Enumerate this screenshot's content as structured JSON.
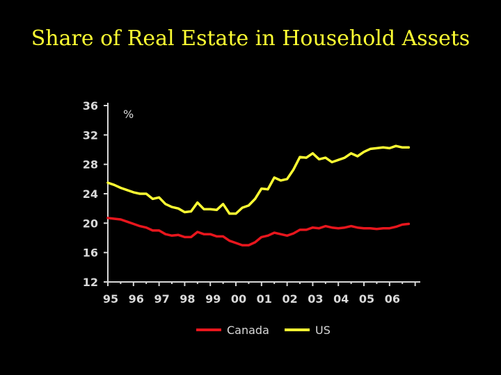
{
  "title": "Share of Real Estate in Household Assets",
  "chart_data": {
    "type": "line",
    "title": "Share of Real Estate in Household Assets",
    "unit_label": "%",
    "xlabel": "",
    "ylabel": "",
    "ylim": [
      12,
      36
    ],
    "yticks": [
      12,
      16,
      20,
      24,
      28,
      32,
      36
    ],
    "xlim": [
      1995,
      2007.2
    ],
    "xticks": [
      {
        "label": "95",
        "x": 1995
      },
      {
        "label": "96",
        "x": 1996
      },
      {
        "label": "97",
        "x": 1997
      },
      {
        "label": "98",
        "x": 1998
      },
      {
        "label": "99",
        "x": 1999
      },
      {
        "label": "00",
        "x": 2000
      },
      {
        "label": "01",
        "x": 2001
      },
      {
        "label": "02",
        "x": 2002
      },
      {
        "label": "03",
        "x": 2003
      },
      {
        "label": "04",
        "x": 2004
      },
      {
        "label": "05",
        "x": 2005
      },
      {
        "label": "06",
        "x": 2006
      }
    ],
    "grid": false,
    "legend_position": "bottom",
    "x": [
      1995.0,
      1995.25,
      1995.5,
      1995.75,
      1996.0,
      1996.25,
      1996.5,
      1996.75,
      1997.0,
      1997.25,
      1997.5,
      1997.75,
      1998.0,
      1998.25,
      1998.5,
      1998.75,
      1999.0,
      1999.25,
      1999.5,
      1999.75,
      2000.0,
      2000.25,
      2000.5,
      2000.75,
      2001.0,
      2001.25,
      2001.5,
      2001.75,
      2002.0,
      2002.25,
      2002.5,
      2002.75,
      2003.0,
      2003.25,
      2003.5,
      2003.75,
      2004.0,
      2004.25,
      2004.5,
      2004.75,
      2005.0,
      2005.25,
      2005.5,
      2005.75,
      2006.0,
      2006.25,
      2006.5,
      2006.75
    ],
    "series": [
      {
        "name": "Canada",
        "color": "#e8161d",
        "values": [
          20.7,
          20.6,
          20.5,
          20.2,
          19.9,
          19.6,
          19.4,
          19.0,
          19.0,
          18.5,
          18.3,
          18.4,
          18.1,
          18.1,
          18.8,
          18.5,
          18.5,
          18.2,
          18.2,
          17.6,
          17.3,
          17.0,
          17.0,
          17.4,
          18.1,
          18.3,
          18.7,
          18.5,
          18.3,
          18.6,
          19.1,
          19.1,
          19.4,
          19.3,
          19.6,
          19.4,
          19.3,
          19.4,
          19.6,
          19.4,
          19.3,
          19.3,
          19.2,
          19.3,
          19.3,
          19.5,
          19.8,
          19.9
        ]
      },
      {
        "name": "US",
        "color": "#ffff33",
        "values": [
          25.5,
          25.2,
          24.8,
          24.5,
          24.2,
          24.0,
          24.0,
          23.3,
          23.5,
          22.6,
          22.2,
          22.0,
          21.5,
          21.6,
          22.8,
          21.9,
          21.9,
          21.8,
          22.6,
          21.3,
          21.3,
          22.1,
          22.4,
          23.3,
          24.7,
          24.6,
          26.2,
          25.8,
          26.0,
          27.3,
          29.0,
          28.9,
          29.5,
          28.7,
          28.9,
          28.3,
          28.6,
          28.9,
          29.5,
          29.1,
          29.7,
          30.1,
          30.2,
          30.3,
          30.2,
          30.5,
          30.3,
          30.3
        ]
      }
    ]
  }
}
